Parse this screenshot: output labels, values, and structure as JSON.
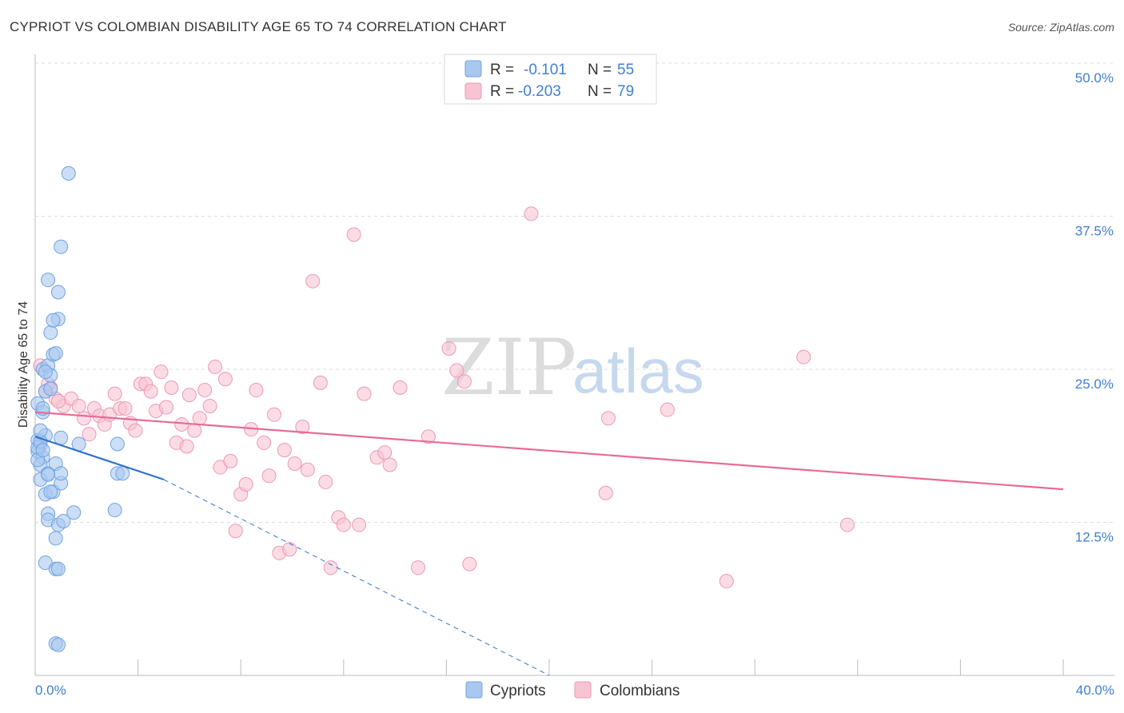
{
  "chart_data": {
    "type": "scatter",
    "title": "CYPRIOT VS COLOMBIAN DISABILITY AGE 65 TO 74 CORRELATION CHART",
    "source": "Source: ZipAtlas.com",
    "xlabel": "",
    "ylabel": "Disability Age 65 to 74",
    "xlim": [
      0,
      40
    ],
    "ylim": [
      0,
      50
    ],
    "x_tick_labels": {
      "min": "0.0%",
      "max": "40.0%"
    },
    "y_ticks": [
      12.5,
      25.0,
      37.5,
      50.0
    ],
    "y_tick_labels": [
      "12.5%",
      "25.0%",
      "37.5%",
      "50.0%"
    ],
    "grid": true,
    "watermark": {
      "zip": "ZIP",
      "atlas": "atlas"
    },
    "legend": {
      "position": "top-center",
      "rows": [
        {
          "r_label": "R =",
          "r_value": "-0.101",
          "n_label": "N =",
          "n_value": "55"
        },
        {
          "r_label": "R =",
          "r_value": "-0.203",
          "n_label": "N =",
          "n_value": "79"
        }
      ]
    },
    "colors": {
      "cypriots_fill": "#a9c8f0",
      "cypriots_stroke": "#6fa2e0",
      "cypriots_line": "#2f72d0",
      "colombians_fill": "#f8c4d4",
      "colombians_stroke": "#ee97b4",
      "colombians_line": "#e66b97",
      "tick_text": "#3f7fd0",
      "grid": "#dddddd"
    },
    "series": [
      {
        "name": "Cypriots",
        "trend": {
          "x": [
            0,
            5
          ],
          "y": [
            19.5,
            16.0
          ],
          "dashed_extension": {
            "x": [
              5,
              20
            ],
            "y": [
              16.0,
              0.0
            ]
          }
        },
        "points": [
          [
            0.1,
            19.2
          ],
          [
            0.2,
            18.8
          ],
          [
            0.1,
            18.3
          ],
          [
            0.3,
            17.8
          ],
          [
            0.2,
            17.2
          ],
          [
            0.1,
            22.2
          ],
          [
            0.3,
            21.5
          ],
          [
            0.4,
            23.2
          ],
          [
            0.3,
            25.0
          ],
          [
            0.5,
            25.3
          ],
          [
            0.6,
            24.5
          ],
          [
            0.4,
            19.6
          ],
          [
            0.7,
            26.2
          ],
          [
            0.8,
            26.3
          ],
          [
            0.6,
            28.0
          ],
          [
            0.9,
            29.1
          ],
          [
            0.7,
            29.0
          ],
          [
            0.9,
            31.3
          ],
          [
            0.5,
            32.3
          ],
          [
            1.0,
            35.0
          ],
          [
            1.3,
            41.0
          ],
          [
            0.2,
            16.0
          ],
          [
            0.5,
            16.5
          ],
          [
            0.4,
            14.8
          ],
          [
            0.7,
            15.0
          ],
          [
            1.0,
            15.7
          ],
          [
            0.8,
            17.3
          ],
          [
            1.0,
            16.5
          ],
          [
            0.5,
            13.2
          ],
          [
            0.5,
            12.7
          ],
          [
            0.9,
            12.3
          ],
          [
            1.1,
            12.6
          ],
          [
            1.5,
            13.3
          ],
          [
            1.7,
            18.9
          ],
          [
            1.0,
            19.4
          ],
          [
            0.8,
            11.2
          ],
          [
            0.4,
            9.2
          ],
          [
            0.8,
            8.7
          ],
          [
            0.9,
            8.7
          ],
          [
            0.8,
            2.6
          ],
          [
            0.9,
            2.5
          ],
          [
            3.2,
            16.5
          ],
          [
            3.4,
            16.5
          ],
          [
            3.1,
            13.5
          ],
          [
            3.2,
            18.9
          ],
          [
            0.1,
            18.6
          ],
          [
            0.1,
            17.6
          ],
          [
            0.2,
            19.1
          ],
          [
            0.3,
            18.4
          ],
          [
            0.2,
            20.0
          ],
          [
            0.3,
            21.8
          ],
          [
            0.6,
            23.4
          ],
          [
            0.4,
            24.8
          ],
          [
            0.5,
            16.4
          ],
          [
            0.6,
            15.0
          ]
        ]
      },
      {
        "name": "Colombians",
        "trend": {
          "x": [
            0,
            40
          ],
          "y": [
            21.5,
            15.2
          ]
        },
        "points": [
          [
            0.2,
            25.3
          ],
          [
            0.4,
            23.2
          ],
          [
            0.6,
            23.5
          ],
          [
            0.8,
            22.6
          ],
          [
            1.1,
            22.0
          ],
          [
            1.4,
            22.6
          ],
          [
            1.7,
            22.0
          ],
          [
            1.9,
            21.0
          ],
          [
            2.1,
            19.7
          ],
          [
            2.3,
            21.8
          ],
          [
            2.5,
            21.2
          ],
          [
            2.7,
            20.5
          ],
          [
            2.9,
            21.3
          ],
          [
            3.1,
            23.0
          ],
          [
            3.3,
            21.8
          ],
          [
            3.5,
            21.8
          ],
          [
            3.7,
            20.6
          ],
          [
            3.9,
            20.0
          ],
          [
            4.1,
            23.8
          ],
          [
            4.3,
            23.8
          ],
          [
            4.5,
            23.2
          ],
          [
            4.7,
            21.6
          ],
          [
            4.9,
            24.8
          ],
          [
            5.1,
            21.9
          ],
          [
            5.3,
            23.5
          ],
          [
            5.5,
            19.0
          ],
          [
            5.7,
            20.5
          ],
          [
            5.9,
            18.7
          ],
          [
            6.0,
            22.9
          ],
          [
            6.2,
            20.0
          ],
          [
            6.4,
            21.0
          ],
          [
            6.6,
            23.3
          ],
          [
            6.8,
            22.0
          ],
          [
            7.0,
            25.2
          ],
          [
            7.2,
            17.0
          ],
          [
            7.4,
            24.2
          ],
          [
            7.6,
            17.5
          ],
          [
            7.8,
            11.8
          ],
          [
            8.0,
            14.8
          ],
          [
            8.2,
            15.6
          ],
          [
            8.4,
            20.1
          ],
          [
            8.6,
            23.3
          ],
          [
            8.9,
            19.0
          ],
          [
            9.1,
            16.3
          ],
          [
            9.3,
            21.3
          ],
          [
            9.5,
            10.0
          ],
          [
            9.7,
            18.4
          ],
          [
            9.9,
            10.3
          ],
          [
            10.1,
            17.3
          ],
          [
            10.4,
            20.3
          ],
          [
            10.6,
            16.8
          ],
          [
            10.8,
            32.2
          ],
          [
            11.1,
            23.9
          ],
          [
            11.3,
            15.8
          ],
          [
            11.5,
            8.8
          ],
          [
            11.8,
            12.9
          ],
          [
            12.0,
            12.3
          ],
          [
            12.4,
            36.0
          ],
          [
            12.6,
            12.3
          ],
          [
            12.8,
            23.0
          ],
          [
            13.3,
            17.8
          ],
          [
            13.6,
            18.2
          ],
          [
            13.8,
            17.2
          ],
          [
            14.2,
            23.5
          ],
          [
            14.9,
            8.8
          ],
          [
            15.3,
            19.5
          ],
          [
            16.1,
            26.7
          ],
          [
            16.4,
            24.9
          ],
          [
            16.7,
            24.0
          ],
          [
            16.9,
            9.1
          ],
          [
            19.3,
            37.7
          ],
          [
            22.2,
            14.9
          ],
          [
            22.3,
            21.0
          ],
          [
            24.6,
            21.7
          ],
          [
            26.9,
            7.7
          ],
          [
            29.9,
            26.0
          ],
          [
            31.6,
            12.3
          ],
          [
            0.5,
            23.8
          ],
          [
            0.9,
            22.4
          ]
        ]
      }
    ],
    "bottom_legend": [
      "Cypriots",
      "Colombians"
    ]
  }
}
